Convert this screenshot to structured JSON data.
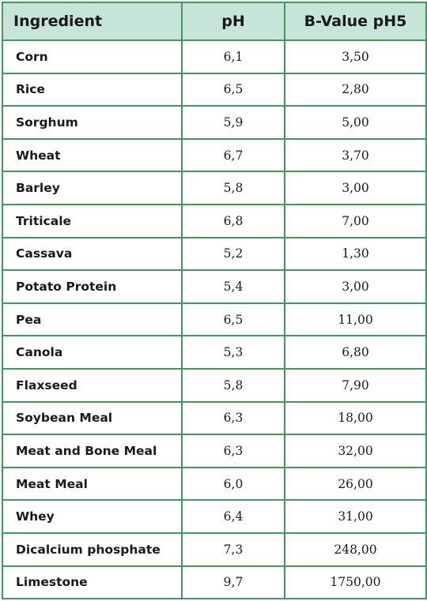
{
  "table": {
    "headers": {
      "ingredient": "Ingredient",
      "ph": "pH",
      "bvalue": "B-Value pH5"
    },
    "rows": [
      {
        "ingredient": "Corn",
        "ph": "6,1",
        "bvalue": "3,50"
      },
      {
        "ingredient": "Rice",
        "ph": "6,5",
        "bvalue": "2,80"
      },
      {
        "ingredient": "Sorghum",
        "ph": "5,9",
        "bvalue": "5,00"
      },
      {
        "ingredient": "Wheat",
        "ph": "6,7",
        "bvalue": "3,70"
      },
      {
        "ingredient": "Barley",
        "ph": "5,8",
        "bvalue": "3,00"
      },
      {
        "ingredient": "Triticale",
        "ph": "6,8",
        "bvalue": "7,00"
      },
      {
        "ingredient": "Cassava",
        "ph": "5,2",
        "bvalue": "1,30"
      },
      {
        "ingredient": "Potato Protein",
        "ph": "5,4",
        "bvalue": "3,00"
      },
      {
        "ingredient": "Pea",
        "ph": "6,5",
        "bvalue": "11,00"
      },
      {
        "ingredient": "Canola",
        "ph": "5,3",
        "bvalue": "6,80"
      },
      {
        "ingredient": "Flaxseed",
        "ph": "5,8",
        "bvalue": "7,90"
      },
      {
        "ingredient": "Soybean Meal",
        "ph": "6,3",
        "bvalue": "18,00"
      },
      {
        "ingredient": "Meat and Bone Meal",
        "ph": "6,3",
        "bvalue": "32,00"
      },
      {
        "ingredient": "Meat Meal",
        "ph": "6,0",
        "bvalue": "26,00"
      },
      {
        "ingredient": "Whey",
        "ph": "6,4",
        "bvalue": "31,00"
      },
      {
        "ingredient": "Dicalcium phosphate",
        "ph": "7,3",
        "bvalue": "248,00"
      },
      {
        "ingredient": "Limestone",
        "ph": "9,7",
        "bvalue": "1750,00"
      }
    ]
  },
  "colors": {
    "border": "#3f9a5e",
    "header_bg": "#c6e4d7"
  }
}
